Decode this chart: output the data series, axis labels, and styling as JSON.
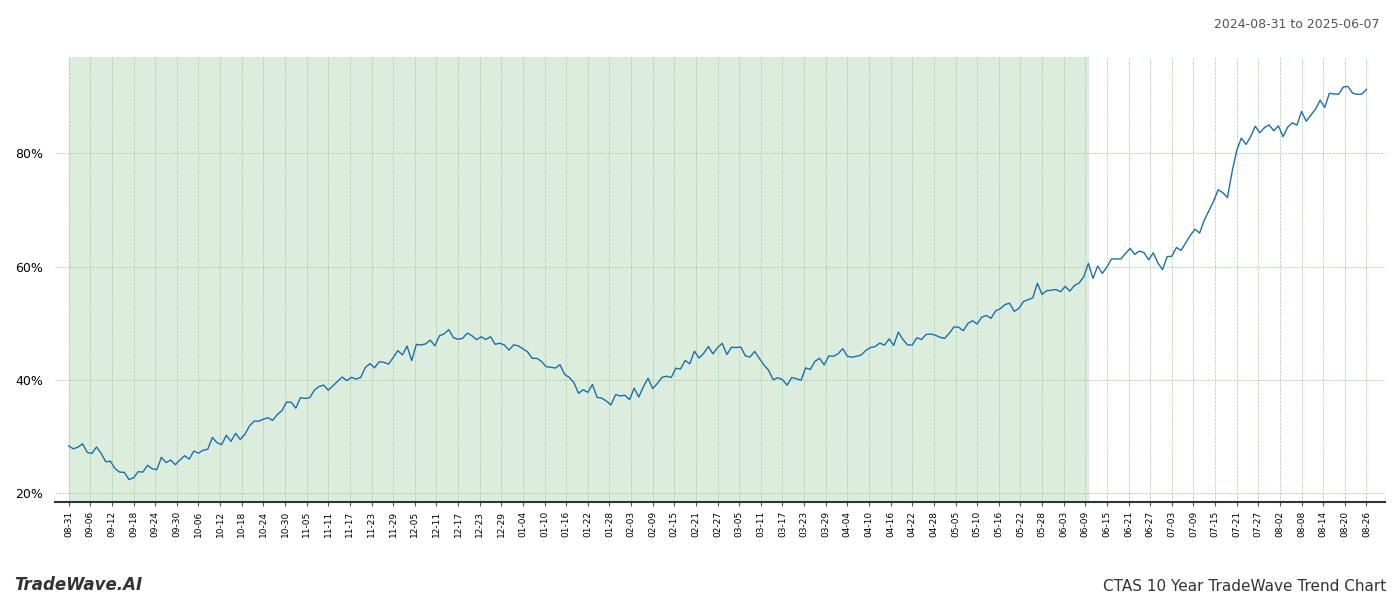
{
  "title_top_right": "2024-08-31 to 2025-06-07",
  "title_bottom_left": "TradeWave.AI",
  "title_bottom_right": "CTAS 10 Year TradeWave Trend Chart",
  "line_color": "#1c6fad",
  "shaded_color": "#d6ead9",
  "shaded_alpha": 0.85,
  "background_color": "#ffffff",
  "grid_color": "#a8c8a8",
  "ylim": [
    0.185,
    0.97
  ],
  "yticks": [
    0.2,
    0.4,
    0.6,
    0.8
  ],
  "shade_end_label": "06-09",
  "x_labels": [
    "08-31",
    "09-06",
    "09-12",
    "09-18",
    "09-24",
    "09-30",
    "10-06",
    "10-12",
    "10-18",
    "10-24",
    "10-30",
    "11-05",
    "11-11",
    "11-17",
    "11-23",
    "11-29",
    "12-05",
    "12-11",
    "12-17",
    "12-23",
    "12-29",
    "01-04",
    "01-10",
    "01-16",
    "01-22",
    "01-28",
    "02-03",
    "02-09",
    "02-15",
    "02-21",
    "02-27",
    "03-05",
    "03-11",
    "03-17",
    "03-23",
    "03-29",
    "04-04",
    "04-10",
    "04-16",
    "04-22",
    "04-28",
    "05-05",
    "05-10",
    "05-16",
    "05-22",
    "05-28",
    "06-03",
    "06-09",
    "06-15",
    "06-21",
    "06-27",
    "07-03",
    "07-09",
    "07-15",
    "07-21",
    "07-27",
    "08-02",
    "08-08",
    "08-14",
    "08-20",
    "08-26"
  ]
}
